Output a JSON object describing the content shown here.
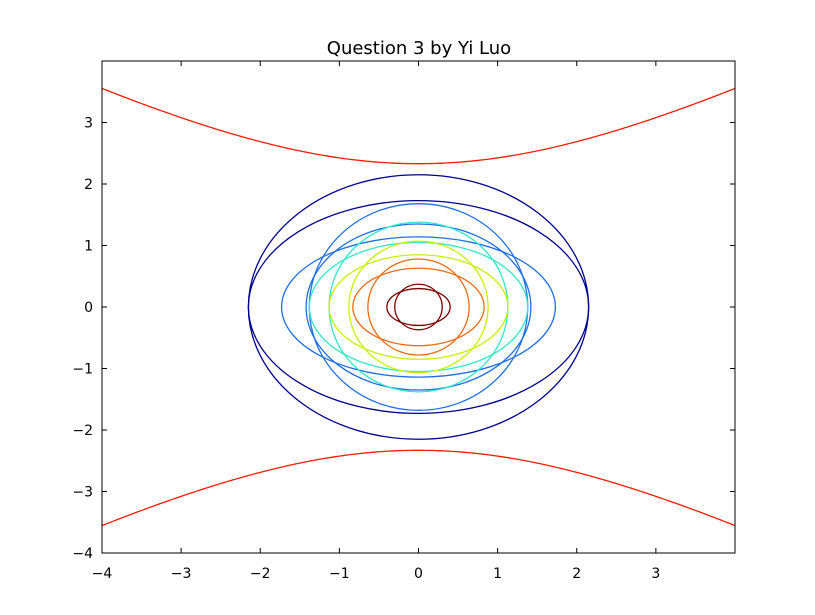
{
  "chart_data": {
    "type": "line",
    "title": "Question 3 by Yi Luo",
    "xlabel": "",
    "ylabel": "",
    "xlim": [
      -4,
      4
    ],
    "ylim": [
      -4,
      4
    ],
    "grid": false,
    "xticks": [
      {
        "value": -4,
        "label": "−4"
      },
      {
        "value": -3,
        "label": "−3"
      },
      {
        "value": -2,
        "label": "−2"
      },
      {
        "value": -1,
        "label": "−1"
      },
      {
        "value": 0,
        "label": "0"
      },
      {
        "value": 1,
        "label": "1"
      },
      {
        "value": 2,
        "label": "2"
      },
      {
        "value": 3,
        "label": "3"
      }
    ],
    "yticks": [
      {
        "value": -4,
        "label": "−4"
      },
      {
        "value": -3,
        "label": "−3"
      },
      {
        "value": -2,
        "label": "−2"
      },
      {
        "value": -1,
        "label": "−1"
      },
      {
        "value": 0,
        "label": "0"
      },
      {
        "value": 1,
        "label": "1"
      },
      {
        "value": 2,
        "label": "2"
      },
      {
        "value": 3,
        "label": "3"
      }
    ],
    "series": [
      {
        "kind": "ellipse",
        "color": "#00008f",
        "rx": 2.15,
        "ry": 2.15
      },
      {
        "kind": "ellipse",
        "color": "#00008f",
        "rx": 2.15,
        "ry": 1.73
      },
      {
        "kind": "ellipse",
        "color": "#1f6fe6",
        "rx": 1.42,
        "ry": 1.35
      },
      {
        "kind": "ellipse",
        "color": "#1f6fe6",
        "rx": 1.73,
        "ry": 1.14
      },
      {
        "kind": "ellipse",
        "color": "#1f6fe6",
        "rx": 1.38,
        "ry": 1.68
      },
      {
        "kind": "ellipse",
        "color": "#2ee8c8",
        "rx": 1.38,
        "ry": 1.05
      },
      {
        "kind": "ellipse",
        "color": "#2ee8c8",
        "rx": 1.13,
        "ry": 1.38
      },
      {
        "kind": "ellipse",
        "color": "#c8f000",
        "rx": 1.13,
        "ry": 0.85
      },
      {
        "kind": "ellipse",
        "color": "#c8f000",
        "rx": 0.88,
        "ry": 1.07
      },
      {
        "kind": "ellipse",
        "color": "#f06a10",
        "rx": 0.83,
        "ry": 0.63
      },
      {
        "kind": "ellipse",
        "color": "#f06a10",
        "rx": 0.64,
        "ry": 0.78
      },
      {
        "kind": "ellipse",
        "color": "#7a0000",
        "rx": 0.4,
        "ry": 0.3
      },
      {
        "kind": "ellipse",
        "color": "#7a0000",
        "rx": 0.3,
        "ry": 0.37
      },
      {
        "kind": "hyperbola-upper",
        "color": "#ff1a00",
        "y0": 2.33,
        "k": 1.78
      },
      {
        "kind": "hyperbola-lower",
        "color": "#ff1a00",
        "y0": 2.33,
        "k": 1.78
      }
    ]
  }
}
